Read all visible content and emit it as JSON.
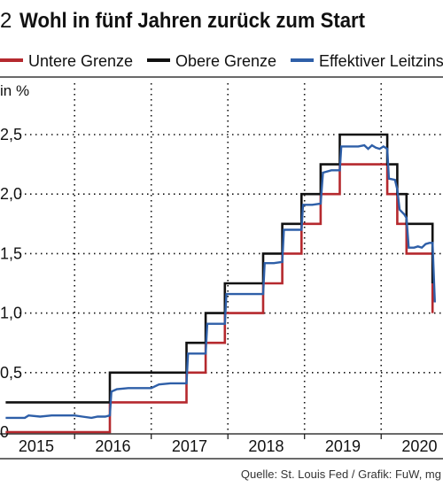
{
  "chart_data": {
    "type": "line",
    "number": "2",
    "title": "Wohl in fünf Jahren zurück zum Start",
    "ylabel": "in %",
    "source": "Quelle: St. Louis Fed / Grafik: FuW, mg",
    "ylim": [
      0,
      2.7
    ],
    "yticks": [
      0,
      0.5,
      1.0,
      1.5,
      2.0,
      2.5
    ],
    "ytick_labels": [
      "0",
      "0,5",
      "1,0",
      "1,5",
      "2,0",
      "2,5"
    ],
    "xlim": [
      2014.55,
      2020.45
    ],
    "x_labels": [
      {
        "x": 2015,
        "label": "2015"
      },
      {
        "x": 2016,
        "label": "2016"
      },
      {
        "x": 2017,
        "label": "2017"
      },
      {
        "x": 2018,
        "label": "2018"
      },
      {
        "x": 2019,
        "label": "2019"
      },
      {
        "x": 2020,
        "label": "2020"
      }
    ],
    "x_gridlines": [
      2015.5,
      2016.5,
      2017.5,
      2018.5,
      2019.5
    ],
    "grid": "dotted vertical and horizontal",
    "legend_position": "top",
    "series": [
      {
        "name": "Untere Grenze",
        "color": "#b5292e",
        "style": "step",
        "points": [
          [
            2014.6,
            0
          ],
          [
            2015.96,
            0
          ],
          [
            2015.96,
            0.25
          ],
          [
            2016.96,
            0.25
          ],
          [
            2016.96,
            0.5
          ],
          [
            2017.21,
            0.5
          ],
          [
            2017.21,
            0.75
          ],
          [
            2017.46,
            0.75
          ],
          [
            2017.46,
            1.0
          ],
          [
            2017.96,
            1.0
          ],
          [
            2017.96,
            1.25
          ],
          [
            2018.21,
            1.25
          ],
          [
            2018.21,
            1.5
          ],
          [
            2018.46,
            1.5
          ],
          [
            2018.46,
            1.75
          ],
          [
            2018.71,
            1.75
          ],
          [
            2018.71,
            2.0
          ],
          [
            2018.96,
            2.0
          ],
          [
            2018.96,
            2.25
          ],
          [
            2019.58,
            2.25
          ],
          [
            2019.58,
            2.0
          ],
          [
            2019.71,
            2.0
          ],
          [
            2019.71,
            1.75
          ],
          [
            2019.83,
            1.75
          ],
          [
            2019.83,
            1.5
          ],
          [
            2020.17,
            1.5
          ],
          [
            2020.17,
            1.0
          ]
        ]
      },
      {
        "name": "Obere Grenze",
        "color": "#111111",
        "style": "step",
        "points": [
          [
            2014.6,
            0.25
          ],
          [
            2015.96,
            0.25
          ],
          [
            2015.96,
            0.5
          ],
          [
            2016.96,
            0.5
          ],
          [
            2016.96,
            0.75
          ],
          [
            2017.21,
            0.75
          ],
          [
            2017.21,
            1.0
          ],
          [
            2017.46,
            1.0
          ],
          [
            2017.46,
            1.25
          ],
          [
            2017.96,
            1.25
          ],
          [
            2017.96,
            1.5
          ],
          [
            2018.21,
            1.5
          ],
          [
            2018.21,
            1.75
          ],
          [
            2018.46,
            1.75
          ],
          [
            2018.46,
            2.0
          ],
          [
            2018.71,
            2.0
          ],
          [
            2018.71,
            2.25
          ],
          [
            2018.96,
            2.25
          ],
          [
            2018.96,
            2.5
          ],
          [
            2019.58,
            2.5
          ],
          [
            2019.58,
            2.25
          ],
          [
            2019.71,
            2.25
          ],
          [
            2019.71,
            2.0
          ],
          [
            2019.83,
            2.0
          ],
          [
            2019.83,
            1.75
          ],
          [
            2020.17,
            1.75
          ],
          [
            2020.17,
            1.25
          ]
        ]
      },
      {
        "name": "Effektiver Leitzins",
        "color": "#2e5fa8",
        "style": "line",
        "points": [
          [
            2014.6,
            0.12
          ],
          [
            2014.85,
            0.12
          ],
          [
            2014.9,
            0.14
          ],
          [
            2015.05,
            0.13
          ],
          [
            2015.2,
            0.14
          ],
          [
            2015.35,
            0.14
          ],
          [
            2015.5,
            0.14
          ],
          [
            2015.6,
            0.13
          ],
          [
            2015.72,
            0.12
          ],
          [
            2015.8,
            0.13
          ],
          [
            2015.9,
            0.13
          ],
          [
            2015.96,
            0.14
          ],
          [
            2015.98,
            0.34
          ],
          [
            2016.05,
            0.36
          ],
          [
            2016.2,
            0.37
          ],
          [
            2016.35,
            0.37
          ],
          [
            2016.5,
            0.37
          ],
          [
            2016.6,
            0.4
          ],
          [
            2016.75,
            0.41
          ],
          [
            2016.9,
            0.41
          ],
          [
            2016.96,
            0.41
          ],
          [
            2016.98,
            0.66
          ],
          [
            2017.1,
            0.66
          ],
          [
            2017.21,
            0.66
          ],
          [
            2017.23,
            0.91
          ],
          [
            2017.3,
            0.91
          ],
          [
            2017.46,
            0.91
          ],
          [
            2017.48,
            1.16
          ],
          [
            2017.7,
            1.16
          ],
          [
            2017.96,
            1.16
          ],
          [
            2017.98,
            1.42
          ],
          [
            2018.1,
            1.42
          ],
          [
            2018.21,
            1.43
          ],
          [
            2018.23,
            1.7
          ],
          [
            2018.35,
            1.7
          ],
          [
            2018.46,
            1.7
          ],
          [
            2018.48,
            1.91
          ],
          [
            2018.6,
            1.91
          ],
          [
            2018.71,
            1.92
          ],
          [
            2018.74,
            2.18
          ],
          [
            2018.85,
            2.2
          ],
          [
            2018.96,
            2.2
          ],
          [
            2018.98,
            2.4
          ],
          [
            2019.1,
            2.4
          ],
          [
            2019.2,
            2.4
          ],
          [
            2019.28,
            2.41
          ],
          [
            2019.33,
            2.38
          ],
          [
            2019.38,
            2.41
          ],
          [
            2019.43,
            2.39
          ],
          [
            2019.48,
            2.38
          ],
          [
            2019.53,
            2.4
          ],
          [
            2019.58,
            2.38
          ],
          [
            2019.6,
            2.13
          ],
          [
            2019.68,
            2.12
          ],
          [
            2019.71,
            2.04
          ],
          [
            2019.74,
            1.87
          ],
          [
            2019.8,
            1.83
          ],
          [
            2019.83,
            1.8
          ],
          [
            2019.86,
            1.55
          ],
          [
            2019.93,
            1.55
          ],
          [
            2019.98,
            1.56
          ],
          [
            2020.03,
            1.55
          ],
          [
            2020.08,
            1.58
          ],
          [
            2020.13,
            1.59
          ],
          [
            2020.17,
            1.59
          ],
          [
            2020.2,
            1.09
          ]
        ]
      }
    ]
  }
}
